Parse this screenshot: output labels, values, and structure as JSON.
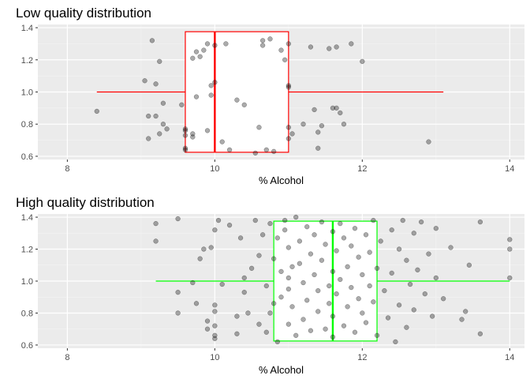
{
  "chart_data": [
    {
      "type": "boxplot",
      "title": "Low quality distribution",
      "xlabel": "% Alcohol",
      "ylabel": "",
      "xlim": [
        7.6,
        14.2
      ],
      "ylim": [
        0.58,
        1.42
      ],
      "xticks": [
        8,
        10,
        12,
        14
      ],
      "yticks": [
        0.6,
        0.8,
        1.0,
        1.2,
        1.4
      ],
      "xtick_labels": [
        "8",
        "10",
        "12",
        "14"
      ],
      "ytick_labels": [
        "0.6",
        "0.8",
        "1.0",
        "1.2",
        "1.4"
      ],
      "box_color": "#ff0000",
      "box": {
        "whisker_low": 8.4,
        "q1": 9.6,
        "median": 10.0,
        "q3": 11.0,
        "whisker_high": 13.1,
        "y_bottom": 0.625,
        "y_top": 1.375,
        "y_center": 1.0
      },
      "points": [
        [
          8.4,
          0.88
        ],
        [
          9.05,
          1.07
        ],
        [
          9.1,
          0.85
        ],
        [
          9.1,
          0.71
        ],
        [
          9.15,
          1.32
        ],
        [
          9.2,
          1.05
        ],
        [
          9.25,
          1.19
        ],
        [
          9.2,
          0.85
        ],
        [
          9.25,
          0.74
        ],
        [
          9.3,
          0.93
        ],
        [
          9.3,
          0.8
        ],
        [
          9.35,
          0.77
        ],
        [
          9.55,
          0.92
        ],
        [
          9.6,
          0.77
        ],
        [
          9.6,
          0.76
        ],
        [
          9.6,
          0.73
        ],
        [
          9.6,
          0.65
        ],
        [
          9.6,
          0.64
        ],
        [
          9.7,
          1.21
        ],
        [
          9.75,
          1.25
        ],
        [
          9.7,
          0.74
        ],
        [
          9.7,
          0.72
        ],
        [
          9.75,
          0.97
        ],
        [
          9.8,
          1.22
        ],
        [
          9.85,
          1.26
        ],
        [
          9.9,
          1.3
        ],
        [
          9.9,
          0.76
        ],
        [
          9.95,
          1.04
        ],
        [
          9.95,
          0.98
        ],
        [
          10.0,
          1.06
        ],
        [
          10.0,
          1.29
        ],
        [
          10.1,
          0.69
        ],
        [
          10.15,
          1.3
        ],
        [
          10.2,
          0.64
        ],
        [
          10.3,
          0.95
        ],
        [
          10.4,
          0.92
        ],
        [
          10.55,
          0.62
        ],
        [
          10.6,
          0.78
        ],
        [
          10.65,
          1.32
        ],
        [
          10.7,
          0.64
        ],
        [
          10.8,
          0.63
        ],
        [
          10.9,
          1.26
        ],
        [
          11.0,
          1.3
        ],
        [
          10.65,
          1.29
        ],
        [
          10.75,
          1.33
        ],
        [
          10.95,
          1.2
        ],
        [
          11.0,
          0.71
        ],
        [
          11.0,
          1.04
        ],
        [
          11.0,
          1.03
        ],
        [
          11.3,
          1.28
        ],
        [
          11.35,
          0.89
        ],
        [
          11.4,
          0.65
        ],
        [
          11.4,
          0.75
        ],
        [
          11.45,
          0.79
        ],
        [
          11.55,
          1.27
        ],
        [
          11.6,
          0.9
        ],
        [
          11.65,
          0.9
        ],
        [
          11.7,
          0.87
        ],
        [
          11.75,
          0.8
        ],
        [
          12.0,
          1.19
        ],
        [
          11.65,
          1.28
        ],
        [
          12.9,
          0.69
        ],
        [
          11.85,
          1.3
        ],
        [
          11.0,
          0.78
        ],
        [
          11.05,
          0.74
        ],
        [
          11.2,
          0.8
        ]
      ]
    },
    {
      "type": "boxplot",
      "title": "High quality distribution",
      "xlabel": "% Alcohol",
      "ylabel": "",
      "xlim": [
        7.6,
        14.2
      ],
      "ylim": [
        0.58,
        1.42
      ],
      "xticks": [
        8,
        10,
        12,
        14
      ],
      "yticks": [
        0.6,
        0.8,
        1.0,
        1.2,
        1.4
      ],
      "xtick_labels": [
        "8",
        "10",
        "12",
        "14"
      ],
      "ytick_labels": [
        "0.6",
        "0.8",
        "1.0",
        "1.2",
        "1.4"
      ],
      "box_color": "#00ff00",
      "box": {
        "whisker_low": 9.2,
        "q1": 10.8,
        "median": 11.6,
        "q3": 12.2,
        "whisker_high": 14.0,
        "y_bottom": 0.625,
        "y_top": 1.375,
        "y_center": 1.0
      },
      "points": [
        [
          9.2,
          1.36
        ],
        [
          9.2,
          1.25
        ],
        [
          9.5,
          1.39
        ],
        [
          9.5,
          0.8
        ],
        [
          9.5,
          0.93
        ],
        [
          9.7,
          0.99
        ],
        [
          9.75,
          0.86
        ],
        [
          9.8,
          1.14
        ],
        [
          9.85,
          1.2
        ],
        [
          9.9,
          0.75
        ],
        [
          9.9,
          0.7
        ],
        [
          9.95,
          1.21
        ],
        [
          10.0,
          1.32
        ],
        [
          10.0,
          0.85
        ],
        [
          10.0,
          0.81
        ],
        [
          10.0,
          0.72
        ],
        [
          10.0,
          0.66
        ],
        [
          10.0,
          0.64
        ],
        [
          10.05,
          1.38
        ],
        [
          10.1,
          0.98
        ],
        [
          10.2,
          1.35
        ],
        [
          10.3,
          0.78
        ],
        [
          10.3,
          0.67
        ],
        [
          10.35,
          1.27
        ],
        [
          10.4,
          1.02
        ],
        [
          10.4,
          0.93
        ],
        [
          10.45,
          0.8
        ],
        [
          10.5,
          1.08
        ],
        [
          10.55,
          1.38
        ],
        [
          10.6,
          1.16
        ],
        [
          10.6,
          0.73
        ],
        [
          10.65,
          1.29
        ],
        [
          10.7,
          0.68
        ],
        [
          10.7,
          0.97
        ],
        [
          10.75,
          1.36
        ],
        [
          10.75,
          0.8
        ],
        [
          10.8,
          1.14
        ],
        [
          10.8,
          0.86
        ],
        [
          10.85,
          1.27
        ],
        [
          10.85,
          0.62
        ],
        [
          10.9,
          1.06
        ],
        [
          10.9,
          0.9
        ],
        [
          10.95,
          1.32
        ],
        [
          10.95,
          1.38
        ],
        [
          11.0,
          1.21
        ],
        [
          11.0,
          1.02
        ],
        [
          11.0,
          0.95
        ],
        [
          11.0,
          0.73
        ],
        [
          11.05,
          1.09
        ],
        [
          11.05,
          0.84
        ],
        [
          11.1,
          1.4
        ],
        [
          11.1,
          0.66
        ],
        [
          11.15,
          1.25
        ],
        [
          11.15,
          1.11
        ],
        [
          11.2,
          0.99
        ],
        [
          11.2,
          0.76
        ],
        [
          11.25,
          1.34
        ],
        [
          11.25,
          0.88
        ],
        [
          11.3,
          1.17
        ],
        [
          11.3,
          0.69
        ],
        [
          11.35,
          1.29
        ],
        [
          11.35,
          1.04
        ],
        [
          11.4,
          0.94
        ],
        [
          11.4,
          0.81
        ],
        [
          11.45,
          1.37
        ],
        [
          11.45,
          1.13
        ],
        [
          11.5,
          1.23
        ],
        [
          11.5,
          0.7
        ],
        [
          11.55,
          0.97
        ],
        [
          11.55,
          0.86
        ],
        [
          11.6,
          1.31
        ],
        [
          11.6,
          1.06
        ],
        [
          11.6,
          0.78
        ],
        [
          11.6,
          0.65
        ],
        [
          11.65,
          1.19
        ],
        [
          11.65,
          0.92
        ],
        [
          11.7,
          1.36
        ],
        [
          11.7,
          1.01
        ],
        [
          11.75,
          0.72
        ],
        [
          11.75,
          1.27
        ],
        [
          11.8,
          0.84
        ],
        [
          11.8,
          1.09
        ],
        [
          11.85,
          1.22
        ],
        [
          11.85,
          0.96
        ],
        [
          11.9,
          0.68
        ],
        [
          11.9,
          1.33
        ],
        [
          11.95,
          1.15
        ],
        [
          11.95,
          0.89
        ],
        [
          12.0,
          1.04
        ],
        [
          12.0,
          0.8
        ],
        [
          12.05,
          1.29
        ],
        [
          12.05,
          0.74
        ],
        [
          12.1,
          1.18
        ],
        [
          12.1,
          0.97
        ],
        [
          12.15,
          0.87
        ],
        [
          12.15,
          1.38
        ],
        [
          12.2,
          1.08
        ],
        [
          12.2,
          0.66
        ],
        [
          12.25,
          1.25
        ],
        [
          12.3,
          0.94
        ],
        [
          12.35,
          0.77
        ],
        [
          12.4,
          1.32
        ],
        [
          12.4,
          1.05
        ],
        [
          12.45,
          0.62
        ],
        [
          12.5,
          1.2
        ],
        [
          12.5,
          0.85
        ],
        [
          12.55,
          1.38
        ],
        [
          12.6,
          1.13
        ],
        [
          12.6,
          0.71
        ],
        [
          12.65,
          0.98
        ],
        [
          12.7,
          1.3
        ],
        [
          12.7,
          0.82
        ],
        [
          12.75,
          1.07
        ],
        [
          12.8,
          1.37
        ],
        [
          12.85,
          0.92
        ],
        [
          12.9,
          1.17
        ],
        [
          12.95,
          0.78
        ],
        [
          13.0,
          1.02
        ],
        [
          13.0,
          1.33
        ],
        [
          13.1,
          0.89
        ],
        [
          13.2,
          1.21
        ],
        [
          13.35,
          0.76
        ],
        [
          13.4,
          0.81
        ],
        [
          13.45,
          1.1
        ],
        [
          13.6,
          1.37
        ],
        [
          13.6,
          0.67
        ],
        [
          14.0,
          1.26
        ],
        [
          14.0,
          1.2
        ],
        [
          14.0,
          1.02
        ]
      ]
    }
  ]
}
